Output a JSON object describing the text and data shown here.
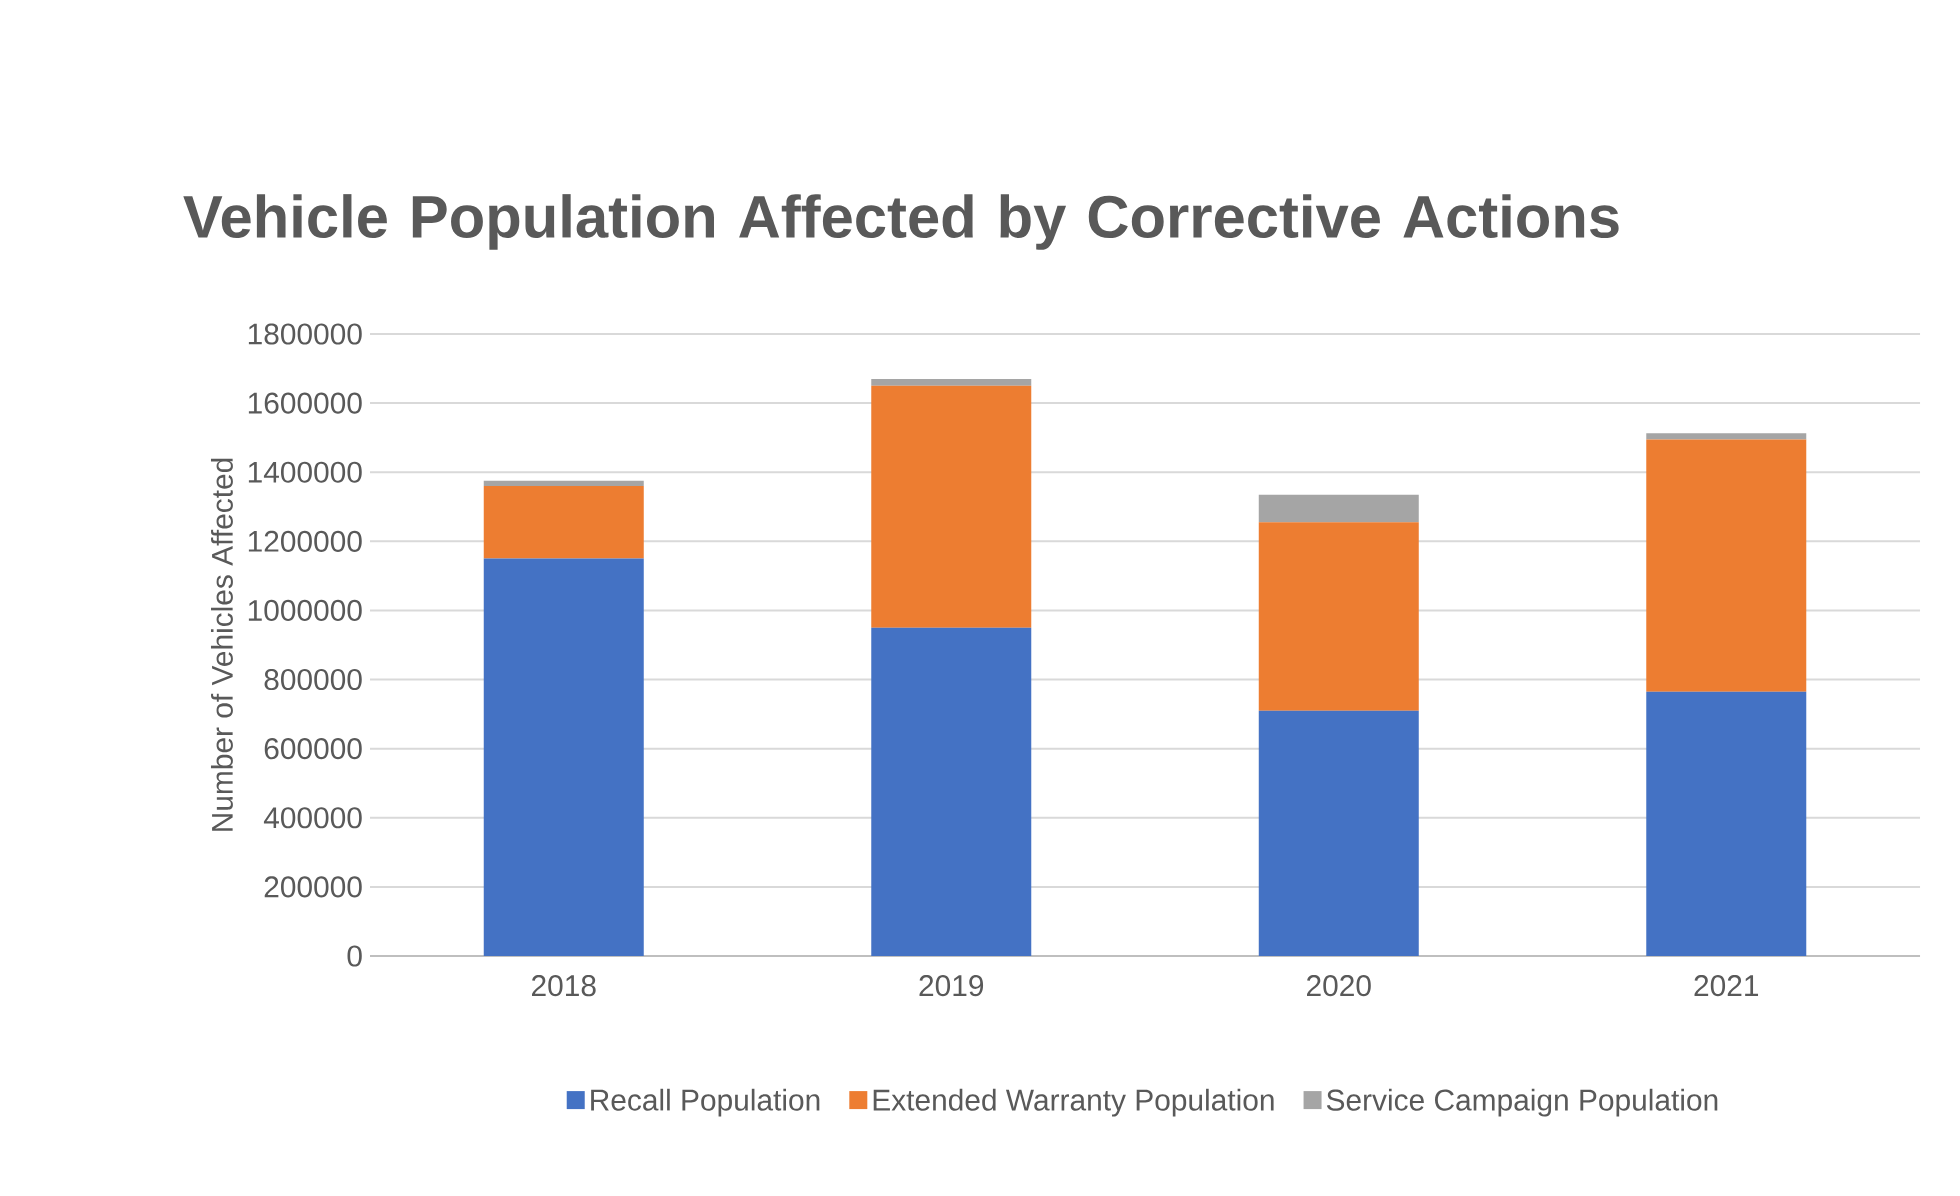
{
  "chart_data": {
    "type": "bar",
    "title": "Vehicle Population Affected by Corrective Actions",
    "ylabel": "Number of Vehicles Affected",
    "categories": [
      "2018",
      "2019",
      "2020",
      "2021"
    ],
    "stacked": true,
    "series": [
      {
        "name": "Recall Population",
        "color": "#4472c4",
        "values": [
          1150000,
          950000,
          710000,
          765000
        ]
      },
      {
        "name": "Extended Warranty Population",
        "color": "#ed7d31",
        "values": [
          210000,
          700000,
          545000,
          730000
        ]
      },
      {
        "name": "Service Campaign Population",
        "color": "#a5a5a5",
        "values": [
          15000,
          20000,
          80000,
          18000
        ]
      }
    ],
    "ylim": [
      0,
      1800000
    ],
    "yticks": [
      0,
      200000,
      400000,
      600000,
      800000,
      1000000,
      1200000,
      1400000,
      1600000,
      1800000
    ],
    "grid": "y",
    "legend": "bottom"
  }
}
